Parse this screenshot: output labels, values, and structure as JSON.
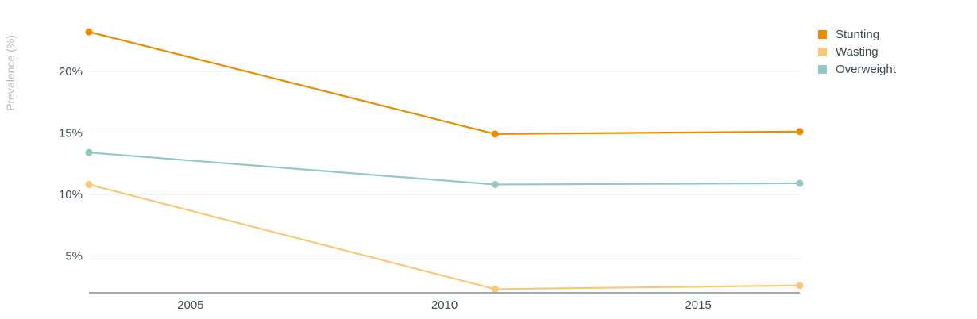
{
  "chart_data": {
    "type": "line",
    "title": "",
    "xlabel": "",
    "ylabel": "Prevalence (%)",
    "x": [
      2003,
      2011,
      2017
    ],
    "xticks": [
      2005,
      2010,
      2015
    ],
    "yticks": [
      5,
      10,
      15,
      20
    ],
    "ytick_labels": [
      "5%",
      "10%",
      "15%",
      "20%"
    ],
    "xlim": [
      2003,
      2017
    ],
    "ylim": [
      2,
      24.5
    ],
    "grid": true,
    "legend": "top-right",
    "series": [
      {
        "name": "Stunting",
        "color": "#ea8c00",
        "values": [
          23.2,
          14.9,
          15.1
        ]
      },
      {
        "name": "Wasting",
        "color": "#f9c77a",
        "values": [
          10.8,
          2.3,
          2.6
        ]
      },
      {
        "name": "Overweight",
        "color": "#95c7c7",
        "values": [
          13.4,
          10.8,
          10.9
        ]
      }
    ]
  }
}
